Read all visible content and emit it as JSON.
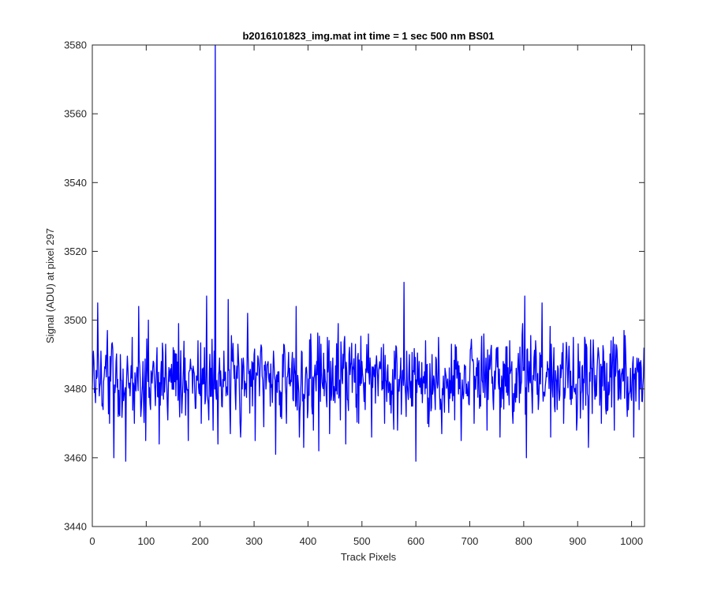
{
  "chart_data": {
    "type": "line",
    "title": "b2016101823_img.mat int time = 1 sec  500 nm BS01",
    "xlabel": "Track Pixels",
    "ylabel": "Signal (ADU) at pixel 297",
    "xlim": [
      0,
      1024
    ],
    "ylim": [
      3440,
      3580
    ],
    "xticks": [
      0,
      100,
      200,
      300,
      400,
      500,
      600,
      700,
      800,
      900,
      1000
    ],
    "yticks": [
      3440,
      3460,
      3480,
      3500,
      3520,
      3540,
      3560,
      3580
    ],
    "grid": false,
    "legend": "none",
    "series": [
      {
        "color": "#0000ff",
        "noise": {
          "n_points": 1024,
          "mean": 3483,
          "min": 3459,
          "max": 3511
        },
        "points": [
          [
            0,
            3480
          ],
          [
            3,
            3488
          ],
          [
            6,
            3476
          ],
          [
            10,
            3505
          ],
          [
            13,
            3478
          ],
          [
            16,
            3491
          ],
          [
            20,
            3474
          ],
          [
            24,
            3486
          ],
          [
            28,
            3497
          ],
          [
            32,
            3470
          ],
          [
            36,
            3493
          ],
          [
            40,
            3460
          ],
          [
            44,
            3488
          ],
          [
            48,
            3472
          ],
          [
            52,
            3490
          ],
          [
            56,
            3476
          ],
          [
            62,
            3459
          ],
          [
            66,
            3486
          ],
          [
            70,
            3478
          ],
          [
            74,
            3495
          ],
          [
            78,
            3470
          ],
          [
            82,
            3484
          ],
          [
            86,
            3504
          ],
          [
            90,
            3472
          ],
          [
            94,
            3488
          ],
          [
            99,
            3465
          ],
          [
            104,
            3500
          ],
          [
            108,
            3474
          ],
          [
            112,
            3486
          ],
          [
            116,
            3480
          ],
          [
            120,
            3492
          ],
          [
            124,
            3464
          ],
          [
            128,
            3488
          ],
          [
            132,
            3477
          ],
          [
            136,
            3493
          ],
          [
            140,
            3471
          ],
          [
            144,
            3485
          ],
          [
            150,
            3492
          ],
          [
            155,
            3478
          ],
          [
            160,
            3499
          ],
          [
            166,
            3473
          ],
          [
            172,
            3489
          ],
          [
            178,
            3465
          ],
          [
            184,
            3486
          ],
          [
            190,
            3479
          ],
          [
            196,
            3494
          ],
          [
            202,
            3470
          ],
          [
            208,
            3492
          ],
          [
            212,
            3507
          ],
          [
            216,
            3471
          ],
          [
            220,
            3486
          ],
          [
            224,
            3468
          ],
          [
            226,
            3491
          ],
          [
            228,
            3580
          ],
          [
            230,
            3477
          ],
          [
            233,
            3464
          ],
          [
            236,
            3489
          ],
          [
            240,
            3475
          ],
          [
            244,
            3491
          ],
          [
            248,
            3478
          ],
          [
            252,
            3506
          ],
          [
            256,
            3467
          ],
          [
            260,
            3488
          ],
          [
            266,
            3474
          ],
          [
            270,
            3493
          ],
          [
            275,
            3466
          ],
          [
            280,
            3489
          ],
          [
            284,
            3480
          ],
          [
            288,
            3502
          ],
          [
            292,
            3473
          ],
          [
            296,
            3488
          ],
          [
            302,
            3465
          ],
          [
            306,
            3484
          ],
          [
            310,
            3478
          ],
          [
            314,
            3492
          ],
          [
            318,
            3469
          ],
          [
            324,
            3487
          ],
          [
            330,
            3475
          ],
          [
            336,
            3491
          ],
          [
            340,
            3461
          ],
          [
            346,
            3485
          ],
          [
            350,
            3479
          ],
          [
            355,
            3493
          ],
          [
            360,
            3470
          ],
          [
            366,
            3486
          ],
          [
            372,
            3477
          ],
          [
            378,
            3504
          ],
          [
            384,
            3466
          ],
          [
            388,
            3491
          ],
          [
            392,
            3463
          ],
          [
            396,
            3486
          ],
          [
            400,
            3474
          ],
          [
            405,
            3496
          ],
          [
            410,
            3468
          ],
          [
            416,
            3488
          ],
          [
            420,
            3462
          ],
          [
            425,
            3485
          ],
          [
            430,
            3478
          ],
          [
            436,
            3495
          ],
          [
            440,
            3467
          ],
          [
            446,
            3489
          ],
          [
            450,
            3476
          ],
          [
            456,
            3499
          ],
          [
            460,
            3471
          ],
          [
            466,
            3486
          ],
          [
            470,
            3464
          ],
          [
            476,
            3490
          ],
          [
            482,
            3479
          ],
          [
            488,
            3493
          ],
          [
            494,
            3470
          ],
          [
            500,
            3488
          ],
          [
            506,
            3474
          ],
          [
            512,
            3496
          ],
          [
            518,
            3466
          ],
          [
            524,
            3487
          ],
          [
            530,
            3478
          ],
          [
            536,
            3492
          ],
          [
            542,
            3470
          ],
          [
            548,
            3487
          ],
          [
            554,
            3473
          ],
          [
            560,
            3491
          ],
          [
            566,
            3468
          ],
          [
            572,
            3489
          ],
          [
            578,
            3511
          ],
          [
            582,
            3472
          ],
          [
            588,
            3490
          ],
          [
            592,
            3475
          ],
          [
            596,
            3485
          ],
          [
            600,
            3459
          ],
          [
            606,
            3488
          ],
          [
            612,
            3476
          ],
          [
            618,
            3494
          ],
          [
            624,
            3469
          ],
          [
            630,
            3490
          ],
          [
            636,
            3474
          ],
          [
            642,
            3495
          ],
          [
            648,
            3467
          ],
          [
            654,
            3486
          ],
          [
            660,
            3479
          ],
          [
            666,
            3493
          ],
          [
            672,
            3471
          ],
          [
            678,
            3488
          ],
          [
            684,
            3465
          ],
          [
            690,
            3487
          ],
          [
            696,
            3478
          ],
          [
            702,
            3492
          ],
          [
            708,
            3470
          ],
          [
            714,
            3489
          ],
          [
            720,
            3475
          ],
          [
            726,
            3496
          ],
          [
            732,
            3468
          ],
          [
            738,
            3487
          ],
          [
            744,
            3474
          ],
          [
            750,
            3492
          ],
          [
            756,
            3466
          ],
          [
            762,
            3488
          ],
          [
            768,
            3479
          ],
          [
            774,
            3494
          ],
          [
            780,
            3470
          ],
          [
            786,
            3486
          ],
          [
            792,
            3476
          ],
          [
            798,
            3499
          ],
          [
            802,
            3507
          ],
          [
            805,
            3460
          ],
          [
            810,
            3488
          ],
          [
            816,
            3473
          ],
          [
            822,
            3494
          ],
          [
            828,
            3477
          ],
          [
            834,
            3505
          ],
          [
            838,
            3479
          ],
          [
            844,
            3488
          ],
          [
            850,
            3466
          ],
          [
            856,
            3492
          ],
          [
            862,
            3474
          ],
          [
            868,
            3487
          ],
          [
            874,
            3470
          ],
          [
            880,
            3491
          ],
          [
            886,
            3477
          ],
          [
            892,
            3495
          ],
          [
            898,
            3468
          ],
          [
            904,
            3488
          ],
          [
            910,
            3474
          ],
          [
            916,
            3493
          ],
          [
            920,
            3463
          ],
          [
            926,
            3486
          ],
          [
            932,
            3477
          ],
          [
            938,
            3492
          ],
          [
            944,
            3470
          ],
          [
            950,
            3488
          ],
          [
            956,
            3474
          ],
          [
            962,
            3494
          ],
          [
            968,
            3468
          ],
          [
            974,
            3487
          ],
          [
            980,
            3477
          ],
          [
            986,
            3497
          ],
          [
            992,
            3472
          ],
          [
            998,
            3486
          ],
          [
            1004,
            3466
          ],
          [
            1010,
            3489
          ],
          [
            1014,
            3474
          ],
          [
            1018,
            3486
          ],
          [
            1023,
            3492
          ]
        ]
      }
    ]
  }
}
